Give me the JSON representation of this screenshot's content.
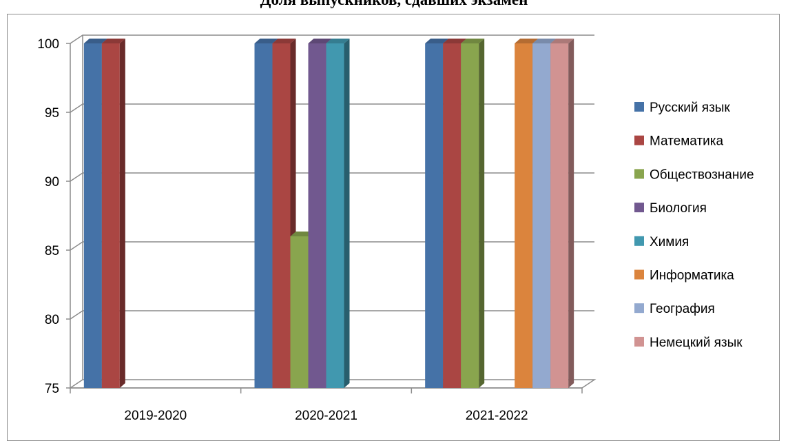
{
  "chart_data": {
    "type": "bar",
    "title": "Доля выпускников, сдавших экзамен",
    "xlabel": "",
    "ylabel": "",
    "ylim": [
      75,
      100
    ],
    "yticks": [
      75,
      80,
      85,
      90,
      95,
      100
    ],
    "grid": true,
    "legend_position": "right",
    "categories": [
      "2019-2020",
      "2020-2021",
      "2021-2022"
    ],
    "series": [
      {
        "name": "Русский язык",
        "color": "#4572A7",
        "values": [
          100,
          100,
          100
        ]
      },
      {
        "name": "Математика",
        "color": "#AA4643",
        "values": [
          100,
          100,
          100
        ]
      },
      {
        "name": "Обществознание",
        "color": "#89A54E",
        "values": [
          null,
          86,
          100
        ]
      },
      {
        "name": "Биология",
        "color": "#71588F",
        "values": [
          null,
          100,
          null
        ]
      },
      {
        "name": "Химия",
        "color": "#4198AF",
        "values": [
          null,
          100,
          null
        ]
      },
      {
        "name": "Информатика",
        "color": "#DB843D",
        "values": [
          null,
          null,
          100
        ]
      },
      {
        "name": "География",
        "color": "#93A9CF",
        "values": [
          null,
          null,
          100
        ]
      },
      {
        "name": "Немецкий язык",
        "color": "#D19392",
        "values": [
          null,
          null,
          100
        ]
      }
    ]
  }
}
